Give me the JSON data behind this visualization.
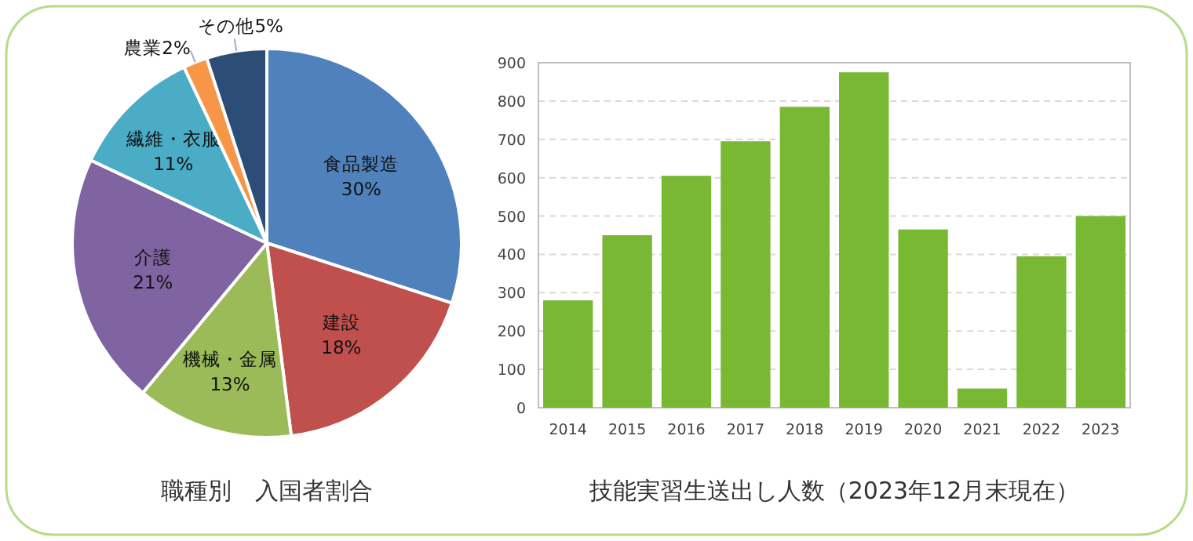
{
  "chart_data": [
    {
      "type": "pie",
      "title": "職種別　入国者割合",
      "categories": [
        "食品製造",
        "建設",
        "機械・金属",
        "介護",
        "繊維・衣服",
        "農業",
        "その他"
      ],
      "values": [
        30,
        18,
        13,
        21,
        11,
        2,
        5
      ],
      "value_labels": [
        "30%",
        "18%",
        "13%",
        "21%",
        "11%",
        "2%",
        "5%"
      ],
      "colors": [
        "#4f81bd",
        "#c0504d",
        "#9bbb59",
        "#8064a2",
        "#4bacc6",
        "#f79646",
        "#2c4d75"
      ]
    },
    {
      "type": "bar",
      "title": "技能実習生送出し人数（2023年12月末現在）",
      "categories": [
        "2014",
        "2015",
        "2016",
        "2017",
        "2018",
        "2019",
        "2020",
        "2021",
        "2022",
        "2023"
      ],
      "series": [
        {
          "color": "#79b833",
          "values": [
            280,
            450,
            605,
            695,
            785,
            875,
            465,
            50,
            395,
            500
          ]
        }
      ],
      "ylim": [
        0,
        900
      ],
      "yticks": [
        0,
        100,
        200,
        300,
        400,
        500,
        600,
        700,
        800,
        900
      ],
      "grid": "y"
    }
  ]
}
